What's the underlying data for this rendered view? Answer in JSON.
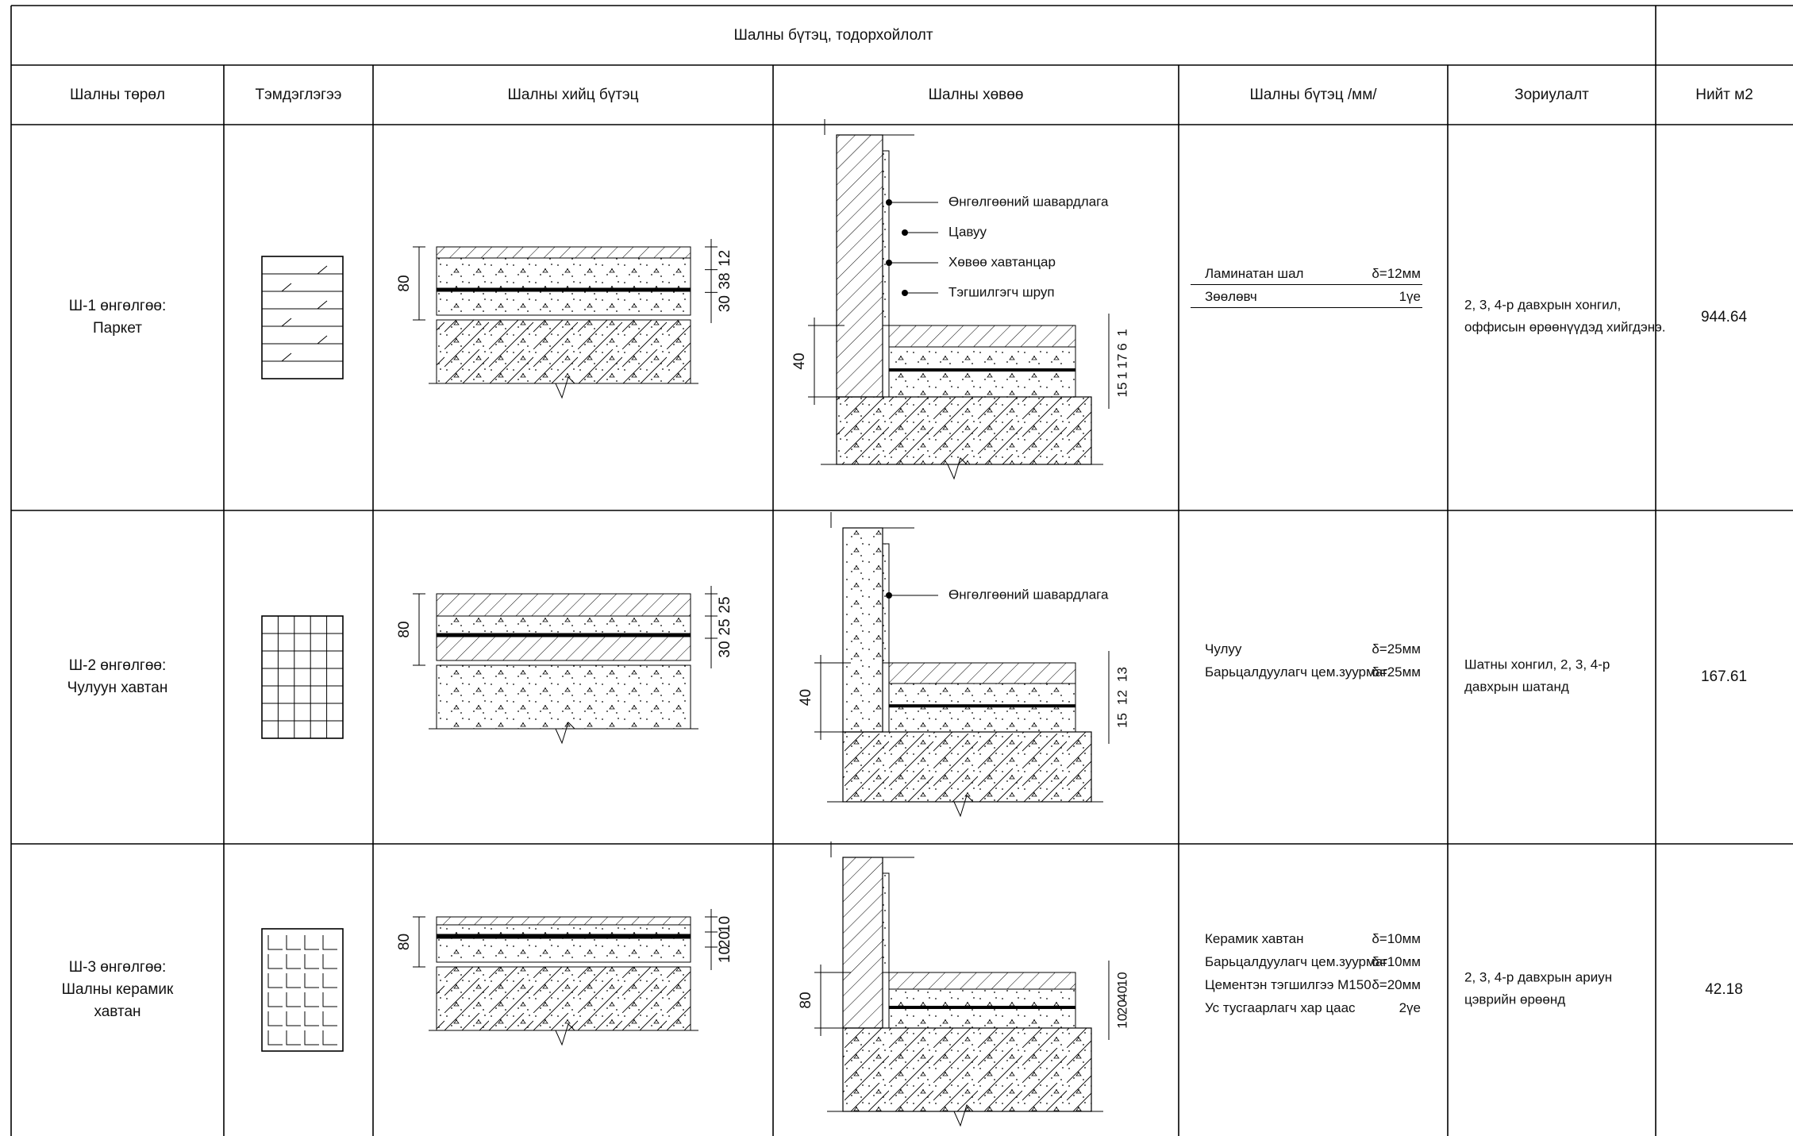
{
  "header": {
    "title": "Шалны бүтэц, тодорхойлолт"
  },
  "table": {
    "columns": [
      "Шалны төрөл",
      "Тэмдэглэгээ",
      "Шалны хийц бүтэц",
      "Шалны хөвөө",
      "Шалны бүтэц  /мм/",
      "Зориулалт",
      "Нийт м2"
    ],
    "rows": [
      {
        "type": [
          "Ш-1 өнгөлгөө:",
          "Паркет"
        ],
        "section": {
          "left": 80,
          "right": [
            12,
            38,
            30
          ]
        },
        "edge": {
          "labels": [
            "Өнгөлгөөний шавардлага",
            "Цавуу",
            "Хөвөө хавтанцар",
            "Тэгшилгэгч шруп"
          ],
          "left": 40,
          "right": [
            1,
            6,
            17,
            1,
            15
          ]
        },
        "layers": [
          [
            "Ламинатан шал",
            "δ=12мм"
          ],
          [
            "Зөөлөвч",
            "1үе"
          ]
        ],
        "purpose": [
          "2, 3, 4-р давхрын хонгил,",
          "оффисын өрөөнүүдэд хийгдэнэ."
        ],
        "area": 944.64
      },
      {
        "type": [
          "Ш-2 өнгөлгөө:",
          "Чулуун хавтан"
        ],
        "section": {
          "left": 80,
          "right": [
            25,
            25,
            30
          ]
        },
        "edge": {
          "labels": [
            "Өнгөлгөөний шавардлага"
          ],
          "left": 40,
          "right": [
            13,
            12,
            15
          ]
        },
        "layers": [
          [
            "Чулуу",
            "δ=25мм"
          ],
          [
            "Барьцалдуулагч цем.зуурмаг",
            "δ=25мм"
          ]
        ],
        "purpose": [
          "Шатны хонгил, 2, 3, 4-р",
          "давхрын шатанд"
        ],
        "area": 167.61
      },
      {
        "type": [
          "Ш-3 өнгөлгөө:",
          "Шалны керамик",
          "хавтан"
        ],
        "section": {
          "left": 80,
          "right": [
            10,
            20,
            10
          ]
        },
        "edge": {
          "left": 80,
          "right": [
            10,
            40,
            20,
            10
          ]
        },
        "layers": [
          [
            "Керамик хавтан",
            "δ=10мм"
          ],
          [
            "Барьцалдуулагч цем.зуурмаг",
            "δ=10мм"
          ],
          [
            "Цементэн тэгшилгээ  М150",
            "δ=20мм"
          ],
          [
            "Ус тусгаарлагч хар цаас",
            "2үе"
          ]
        ],
        "purpose": [
          "2, 3, 4-р давхрын ариун",
          "цэврийн өрөөнд"
        ],
        "area": 42.18
      }
    ]
  }
}
